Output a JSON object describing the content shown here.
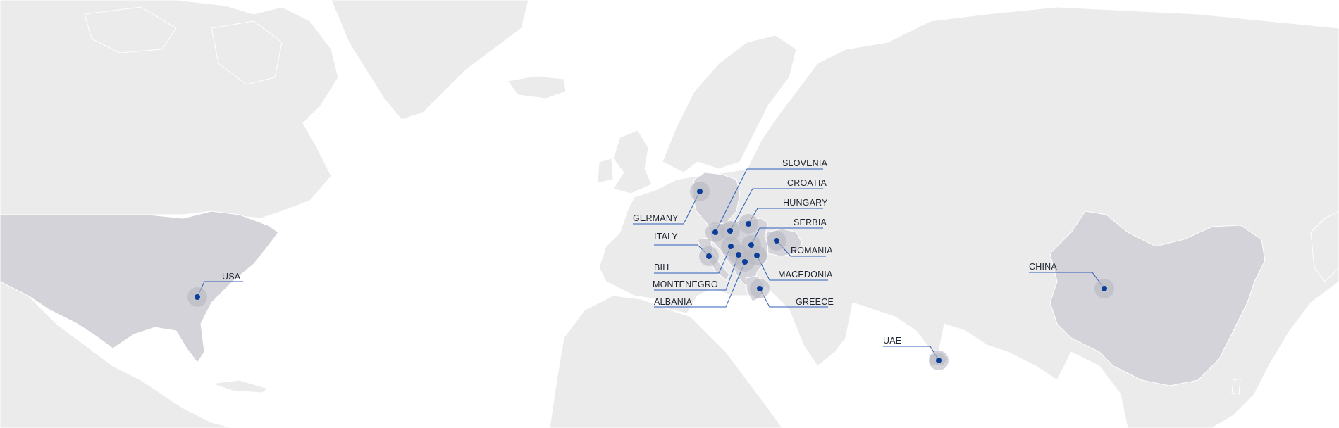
{
  "accent": "#0b3d9a",
  "line_color": "#2f5fb8",
  "markers": [
    {
      "id": "usa",
      "label": "USA"
    },
    {
      "id": "germany",
      "label": "GERMANY"
    },
    {
      "id": "italy",
      "label": "ITALY"
    },
    {
      "id": "bih",
      "label": "BIH"
    },
    {
      "id": "montenegro",
      "label": "MONTENEGRO"
    },
    {
      "id": "albania",
      "label": "ALBANIA"
    },
    {
      "id": "slovenia",
      "label": "SLOVENIA"
    },
    {
      "id": "croatia",
      "label": "CROATIA"
    },
    {
      "id": "hungary",
      "label": "HUNGARY"
    },
    {
      "id": "serbia",
      "label": "SERBIA"
    },
    {
      "id": "romania",
      "label": "ROMANIA"
    },
    {
      "id": "macedonia",
      "label": "MACEDONIA"
    },
    {
      "id": "greece",
      "label": "GREECE"
    },
    {
      "id": "uae",
      "label": "UAE"
    },
    {
      "id": "china",
      "label": "CHINA"
    }
  ]
}
